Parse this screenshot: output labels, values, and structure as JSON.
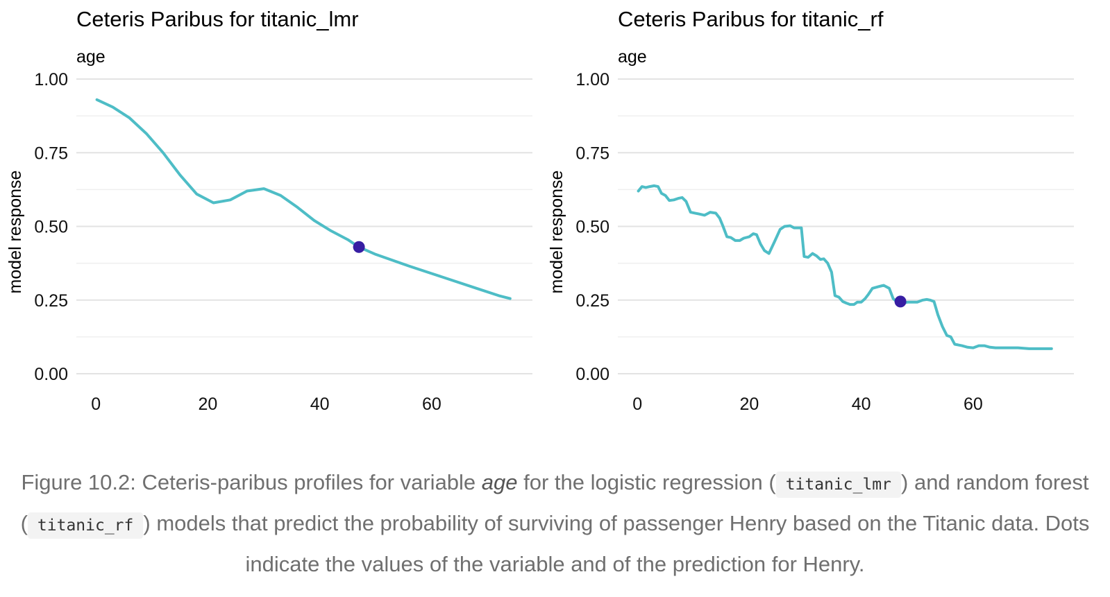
{
  "chart_data": [
    {
      "type": "line",
      "title": "Ceteris Paribus for titanic_lmr",
      "subtitle": "age",
      "xlabel": "",
      "ylabel": "model response",
      "xlim": [
        -3.5,
        78
      ],
      "ylim": [
        0,
        1
      ],
      "xticks": [
        0,
        20,
        40,
        60
      ],
      "xtick_labels": [
        "0",
        "20",
        "40",
        "60"
      ],
      "yticks": [
        0,
        0.25,
        0.5,
        0.75,
        1
      ],
      "ytick_labels": [
        "0.00",
        "0.25",
        "0.50",
        "0.75",
        "1.00"
      ],
      "line_color": "#4ebdc6",
      "point_color": "#371ea3",
      "series": [
        {
          "x": [
            0.17,
            3,
            6,
            9,
            12,
            15,
            18,
            21,
            24,
            27,
            30,
            33,
            36,
            39,
            42,
            45,
            47,
            50,
            53,
            56,
            60,
            64,
            68,
            72,
            74
          ],
          "values": [
            0.93,
            0.905,
            0.868,
            0.815,
            0.75,
            0.675,
            0.61,
            0.58,
            0.59,
            0.62,
            0.628,
            0.605,
            0.565,
            0.52,
            0.485,
            0.455,
            0.43,
            0.405,
            0.385,
            0.365,
            0.34,
            0.315,
            0.29,
            0.265,
            0.255
          ]
        }
      ],
      "observation": {
        "x": 47,
        "y": 0.43
      }
    },
    {
      "type": "line",
      "title": "Ceteris Paribus for titanic_rf",
      "subtitle": "age",
      "xlabel": "",
      "ylabel": "model response",
      "xlim": [
        -3.5,
        78
      ],
      "ylim": [
        0,
        1
      ],
      "xticks": [
        0,
        20,
        40,
        60
      ],
      "xtick_labels": [
        "0",
        "20",
        "40",
        "60"
      ],
      "yticks": [
        0,
        0.25,
        0.5,
        0.75,
        1
      ],
      "ytick_labels": [
        "0.00",
        "0.25",
        "0.50",
        "0.75",
        "1.00"
      ],
      "line_color": "#4ebdc6",
      "point_color": "#371ea3",
      "series": [
        {
          "x": [
            0.17,
            0.8,
            1.5,
            2.2,
            3,
            3.7,
            4.3,
            5,
            5.7,
            6.5,
            7.3,
            8,
            8.7,
            9.5,
            10.3,
            11,
            12,
            13,
            14,
            14.7,
            15.3,
            16,
            16.7,
            17.5,
            18.3,
            19,
            20,
            20.7,
            21.3,
            22,
            22.7,
            23.5,
            24.5,
            25.5,
            26.3,
            27.3,
            28,
            28.7,
            29.3,
            29.8,
            30.5,
            31.3,
            32,
            32.7,
            33.3,
            34,
            34.7,
            35.3,
            36,
            36.7,
            37.3,
            38,
            38.7,
            39.3,
            40,
            40.7,
            41.3,
            42,
            43,
            44,
            45,
            45.7,
            46.3,
            47,
            47.7,
            48.3,
            49,
            50,
            51,
            51.7,
            52.3,
            53,
            53.7,
            54.5,
            55.3,
            56,
            56.7,
            57.3,
            58,
            59,
            60,
            61,
            62,
            63,
            64,
            66,
            68,
            70,
            72,
            74
          ],
          "values": [
            0.62,
            0.635,
            0.632,
            0.635,
            0.638,
            0.635,
            0.612,
            0.605,
            0.588,
            0.59,
            0.595,
            0.598,
            0.585,
            0.548,
            0.545,
            0.542,
            0.538,
            0.548,
            0.545,
            0.528,
            0.5,
            0.465,
            0.462,
            0.452,
            0.452,
            0.46,
            0.465,
            0.475,
            0.472,
            0.44,
            0.418,
            0.408,
            0.448,
            0.49,
            0.5,
            0.502,
            0.495,
            0.495,
            0.495,
            0.398,
            0.395,
            0.408,
            0.4,
            0.388,
            0.39,
            0.375,
            0.345,
            0.265,
            0.26,
            0.245,
            0.24,
            0.235,
            0.235,
            0.243,
            0.243,
            0.255,
            0.27,
            0.29,
            0.295,
            0.3,
            0.29,
            0.255,
            0.245,
            0.24,
            0.24,
            0.243,
            0.243,
            0.243,
            0.25,
            0.252,
            0.25,
            0.245,
            0.2,
            0.16,
            0.13,
            0.125,
            0.1,
            0.098,
            0.095,
            0.09,
            0.088,
            0.095,
            0.095,
            0.09,
            0.088,
            0.088,
            0.088,
            0.085,
            0.085,
            0.085
          ]
        }
      ],
      "observation": {
        "x": 47,
        "y": 0.245
      }
    }
  ],
  "caption": {
    "part1": "Figure 10.2: Ceteris-paribus profiles for variable ",
    "variable": "age",
    "part2": " for the logistic regression (",
    "model1": "titanic_lmr",
    "part3": ") and random forest (",
    "model2": "titanic_rf",
    "part4": ") models that predict the probability of surviving of passenger Henry based on the Titanic data. Dots indicate the values of the variable and of the prediction for Henry."
  }
}
